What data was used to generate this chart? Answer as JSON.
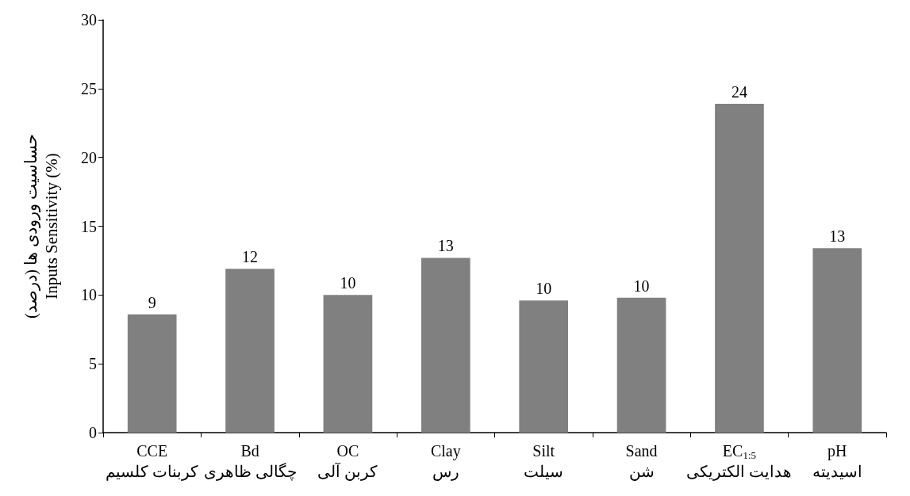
{
  "chart_data": {
    "type": "bar",
    "ylabel": "حساسیت ورودی ها (درصد)\nInputs Sensitivity (%)",
    "categories": [
      "CCE\nکربنات کلسیم",
      "Bd\nچگالی ظاهری",
      "OC\nکربن آلی",
      "Clay\nرس",
      "Silt\nسیلت",
      "Sand\nشن",
      "EC$_{1:5}$\nهدایت الکتریکی",
      "pH\nاسیدیته"
    ],
    "values": [
      8.6,
      11.9,
      10.0,
      12.7,
      9.6,
      9.8,
      23.9,
      13.4
    ],
    "value_labels": [
      "9",
      "12",
      "10",
      "13",
      "10",
      "10",
      "24",
      "13"
    ],
    "color": "#808080",
    "ylim": [
      0,
      30
    ],
    "yticks": [
      0,
      5,
      10,
      15,
      20,
      25,
      30
    ],
    "grid": false
  }
}
